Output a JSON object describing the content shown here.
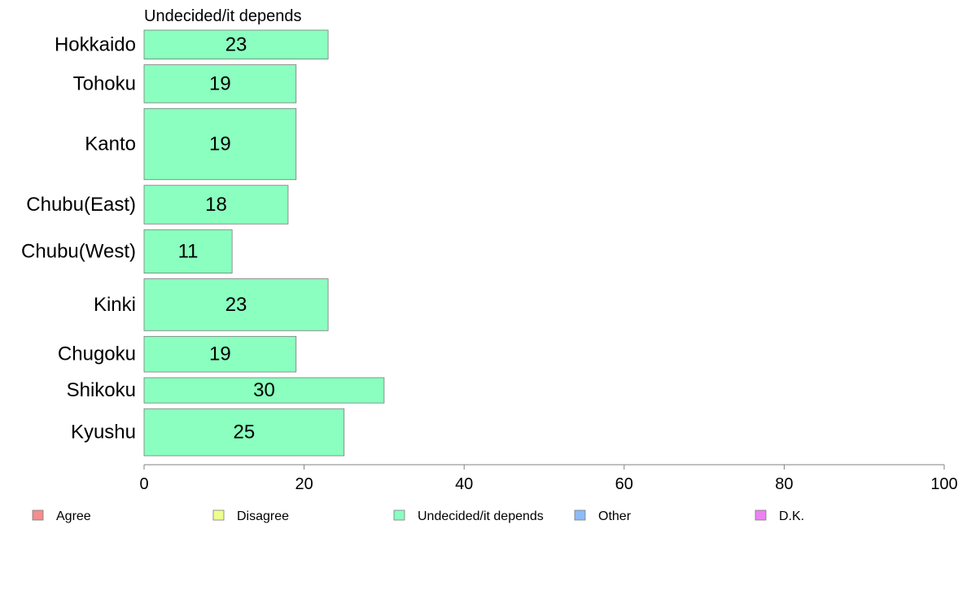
{
  "chart_data": {
    "type": "bar",
    "orientation": "horizontal",
    "panel_title": "Undecided/it depends",
    "categories": [
      "Hokkaido",
      "Tohoku",
      "Kanto",
      "Chubu(East)",
      "Chubu(West)",
      "Kinki",
      "Chugoku",
      "Shikoku",
      "Kyushu"
    ],
    "series": [
      {
        "name": "Undecided/it depends",
        "values": [
          23,
          19,
          19,
          18,
          11,
          23,
          19,
          30,
          25
        ],
        "color": "#8affbf"
      }
    ],
    "bar_thickness": [
      0.048,
      0.063,
      0.118,
      0.064,
      0.072,
      0.086,
      0.059,
      0.042,
      0.078
    ],
    "xlim": [
      0,
      100
    ],
    "xticks": [
      0,
      20,
      40,
      60,
      80,
      100
    ],
    "grid": false,
    "legend": {
      "placement": "bottom",
      "items": [
        {
          "name": "Agree",
          "color": "#f28e8e"
        },
        {
          "name": "Disagree",
          "color": "#eeff8e"
        },
        {
          "name": "Undecided/it depends",
          "color": "#8affbf"
        },
        {
          "name": "Other",
          "color": "#8cbcf6"
        },
        {
          "name": "D.K.",
          "color": "#ec82f2"
        }
      ]
    }
  }
}
